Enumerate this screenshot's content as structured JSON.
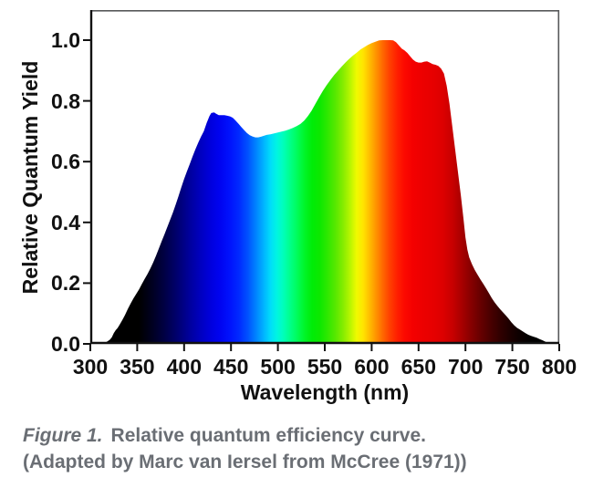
{
  "figure": {
    "caption_label": "Figure 1.",
    "caption_text": "Relative quantum efficiency curve.",
    "caption_line2": "(Adapted by Marc van Iersel from McCree (1971))"
  },
  "chart_data": {
    "type": "area",
    "title": "",
    "xlabel": "Wavelength (nm)",
    "ylabel": "Relative Quantum Yield",
    "xlim": [
      300,
      800
    ],
    "ylim": [
      0,
      1.1
    ],
    "grid": false,
    "legend": "none",
    "x_ticks": [
      "300",
      "350",
      "400",
      "450",
      "500",
      "550",
      "600",
      "650",
      "700",
      "750",
      "800"
    ],
    "y_ticks": [
      "0.0",
      "0.2",
      "0.4",
      "0.6",
      "0.8",
      "1.0"
    ],
    "colors": {
      "background": "#ffffff",
      "axis": "#111111",
      "frame": "#58595b",
      "caption_text": "#6a6e74",
      "fill_style": "spectrum-gradient-by-wavelength"
    },
    "series": [
      {
        "name": "relative-quantum-yield",
        "points": [
          [
            313,
            0
          ],
          [
            315,
            0.003
          ],
          [
            317,
            0.006
          ],
          [
            319,
            0.01
          ],
          [
            321,
            0.014
          ],
          [
            323,
            0.022
          ],
          [
            325,
            0.035
          ],
          [
            327,
            0.045
          ],
          [
            329,
            0.052
          ],
          [
            331,
            0.062
          ],
          [
            334,
            0.078
          ],
          [
            337,
            0.095
          ],
          [
            340,
            0.115
          ],
          [
            343,
            0.133
          ],
          [
            346,
            0.15
          ],
          [
            349,
            0.165
          ],
          [
            352,
            0.18
          ],
          [
            355,
            0.197
          ],
          [
            358,
            0.214
          ],
          [
            361,
            0.23
          ],
          [
            364,
            0.248
          ],
          [
            367,
            0.268
          ],
          [
            370,
            0.29
          ],
          [
            373,
            0.313
          ],
          [
            376,
            0.337
          ],
          [
            379,
            0.36
          ],
          [
            382,
            0.384
          ],
          [
            385,
            0.408
          ],
          [
            388,
            0.432
          ],
          [
            391,
            0.458
          ],
          [
            394,
            0.486
          ],
          [
            397,
            0.515
          ],
          [
            400,
            0.543
          ],
          [
            403,
            0.568
          ],
          [
            406,
            0.592
          ],
          [
            409,
            0.617
          ],
          [
            412,
            0.64
          ],
          [
            415,
            0.662
          ],
          [
            418,
            0.682
          ],
          [
            421,
            0.7
          ],
          [
            424,
            0.727
          ],
          [
            427,
            0.75
          ],
          [
            429,
            0.76
          ],
          [
            432,
            0.762
          ],
          [
            434,
            0.758
          ],
          [
            437,
            0.753
          ],
          [
            440,
            0.753
          ],
          [
            443,
            0.753
          ],
          [
            446,
            0.751
          ],
          [
            449,
            0.749
          ],
          [
            452,
            0.744
          ],
          [
            455,
            0.735
          ],
          [
            458,
            0.725
          ],
          [
            461,
            0.714
          ],
          [
            464,
            0.704
          ],
          [
            467,
            0.694
          ],
          [
            470,
            0.687
          ],
          [
            473,
            0.683
          ],
          [
            476,
            0.68
          ],
          [
            479,
            0.68
          ],
          [
            482,
            0.682
          ],
          [
            485,
            0.685
          ],
          [
            488,
            0.688
          ],
          [
            492,
            0.69
          ],
          [
            496,
            0.693
          ],
          [
            500,
            0.696
          ],
          [
            504,
            0.699
          ],
          [
            508,
            0.702
          ],
          [
            512,
            0.706
          ],
          [
            516,
            0.711
          ],
          [
            520,
            0.717
          ],
          [
            524,
            0.724
          ],
          [
            528,
            0.735
          ],
          [
            532,
            0.75
          ],
          [
            536,
            0.768
          ],
          [
            540,
            0.79
          ],
          [
            544,
            0.812
          ],
          [
            548,
            0.833
          ],
          [
            552,
            0.852
          ],
          [
            556,
            0.869
          ],
          [
            560,
            0.885
          ],
          [
            564,
            0.899
          ],
          [
            568,
            0.913
          ],
          [
            572,
            0.926
          ],
          [
            576,
            0.938
          ],
          [
            580,
            0.949
          ],
          [
            584,
            0.959
          ],
          [
            588,
            0.969
          ],
          [
            592,
            0.977
          ],
          [
            596,
            0.984
          ],
          [
            600,
            0.99
          ],
          [
            604,
            0.995
          ],
          [
            608,
            0.999
          ],
          [
            612,
            1
          ],
          [
            616,
            1
          ],
          [
            620,
            1
          ],
          [
            623,
            0.999
          ],
          [
            626,
            0.993
          ],
          [
            629,
            0.983
          ],
          [
            632,
            0.972
          ],
          [
            635,
            0.966
          ],
          [
            638,
            0.958
          ],
          [
            641,
            0.947
          ],
          [
            644,
            0.936
          ],
          [
            647,
            0.929
          ],
          [
            650,
            0.926
          ],
          [
            653,
            0.926
          ],
          [
            656,
            0.929
          ],
          [
            659,
            0.93
          ],
          [
            662,
            0.926
          ],
          [
            665,
            0.921
          ],
          [
            668,
            0.919
          ],
          [
            671,
            0.915
          ],
          [
            674,
            0.906
          ],
          [
            677,
            0.89
          ],
          [
            680,
            0.85
          ],
          [
            683,
            0.79
          ],
          [
            686,
            0.715
          ],
          [
            689,
            0.64
          ],
          [
            692,
            0.565
          ],
          [
            695,
            0.49
          ],
          [
            698,
            0.41
          ],
          [
            700,
            0.35
          ],
          [
            702,
            0.31
          ],
          [
            704,
            0.285
          ],
          [
            707,
            0.262
          ],
          [
            710,
            0.243
          ],
          [
            713,
            0.227
          ],
          [
            716,
            0.212
          ],
          [
            719,
            0.198
          ],
          [
            722,
            0.183
          ],
          [
            725,
            0.167
          ],
          [
            728,
            0.151
          ],
          [
            731,
            0.137
          ],
          [
            734,
            0.125
          ],
          [
            737,
            0.114
          ],
          [
            740,
            0.104
          ],
          [
            743,
            0.094
          ],
          [
            746,
            0.083
          ],
          [
            749,
            0.071
          ],
          [
            752,
            0.061
          ],
          [
            755,
            0.053
          ],
          [
            758,
            0.047
          ],
          [
            761,
            0.041
          ],
          [
            764,
            0.035
          ],
          [
            767,
            0.03
          ],
          [
            770,
            0.026
          ],
          [
            773,
            0.023
          ],
          [
            776,
            0.02
          ],
          [
            779,
            0.016
          ],
          [
            782,
            0.012
          ],
          [
            784,
            0.009
          ],
          [
            786,
            0.006
          ],
          [
            788,
            0.003
          ],
          [
            790,
            0
          ]
        ]
      }
    ],
    "spectrum_stops": [
      [
        300,
        "#000000"
      ],
      [
        352,
        "#000000"
      ],
      [
        365,
        "#00001e"
      ],
      [
        378,
        "#000041"
      ],
      [
        391,
        "#000069"
      ],
      [
        404,
        "#000096"
      ],
      [
        417,
        "#0000be"
      ],
      [
        428,
        "#0000dc"
      ],
      [
        438,
        "#0003f0"
      ],
      [
        448,
        "#0011fc"
      ],
      [
        458,
        "#0028ff"
      ],
      [
        468,
        "#0052ff"
      ],
      [
        477,
        "#0085ff"
      ],
      [
        485,
        "#00b4ff"
      ],
      [
        492,
        "#00dcfa"
      ],
      [
        499,
        "#00f5e1"
      ],
      [
        506,
        "#00ffb9"
      ],
      [
        513,
        "#00ff8a"
      ],
      [
        521,
        "#00fc57"
      ],
      [
        529,
        "#00f426"
      ],
      [
        537,
        "#00ec06"
      ],
      [
        545,
        "#0de800"
      ],
      [
        553,
        "#2fe800"
      ],
      [
        561,
        "#55e800"
      ],
      [
        569,
        "#82ec00"
      ],
      [
        577,
        "#b8f500"
      ],
      [
        584,
        "#f0fa00"
      ],
      [
        591,
        "#ffe400"
      ],
      [
        598,
        "#ffbb00"
      ],
      [
        605,
        "#ff9100"
      ],
      [
        612,
        "#ff6700"
      ],
      [
        619,
        "#ff4100"
      ],
      [
        627,
        "#ff2000"
      ],
      [
        635,
        "#fc0900"
      ],
      [
        644,
        "#f40000"
      ],
      [
        655,
        "#ec0000"
      ],
      [
        666,
        "#e60000"
      ],
      [
        676,
        "#dc0000"
      ],
      [
        686,
        "#c80000"
      ],
      [
        696,
        "#a80000"
      ],
      [
        706,
        "#860000"
      ],
      [
        716,
        "#670000"
      ],
      [
        726,
        "#4b0000"
      ],
      [
        736,
        "#330000"
      ],
      [
        746,
        "#1f0000"
      ],
      [
        756,
        "#0f0000"
      ],
      [
        766,
        "#040000"
      ],
      [
        776,
        "#000000"
      ],
      [
        800,
        "#000000"
      ]
    ]
  }
}
